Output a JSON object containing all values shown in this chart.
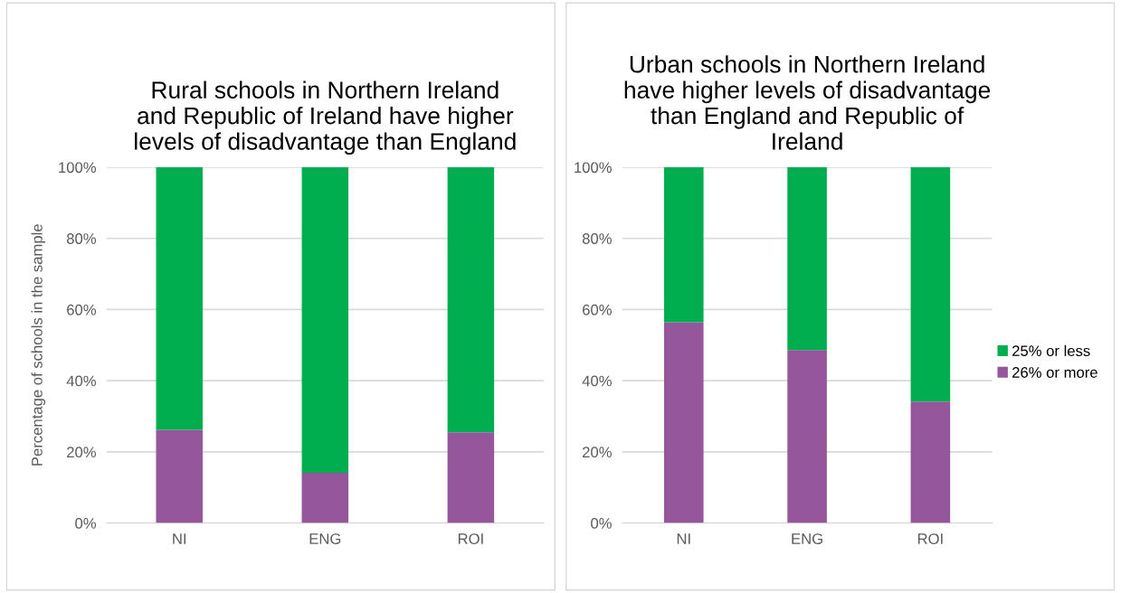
{
  "chart_data": [
    {
      "type": "bar",
      "title": "Rural schools in Northern Ireland\nand Republic of Ireland have higher\nlevels of disadvantage than England",
      "ylabel": "Percentage of schools in the sample",
      "categories": [
        "NI",
        "ENG",
        "ROI"
      ],
      "stacked": true,
      "series": [
        {
          "color": "#95569b",
          "values": [
            26.2,
            14.1,
            25.5
          ]
        },
        {
          "color": "#00ae4f",
          "values": [
            73.8,
            85.9,
            74.5
          ]
        }
      ],
      "ylim": [
        0,
        100
      ],
      "yticks": [
        {
          "value": 0,
          "label": "0%"
        },
        {
          "value": 20,
          "label": "20%"
        },
        {
          "value": 40,
          "label": "40%"
        },
        {
          "value": 60,
          "label": "60%"
        },
        {
          "value": 80,
          "label": "80%"
        },
        {
          "value": 100,
          "label": "100%"
        }
      ],
      "grid": "y",
      "legend": false
    },
    {
      "type": "bar",
      "title": "Urban schools in Northern Ireland\nhave higher levels of disadvantage\nthan England and Republic of\nIreland",
      "categories": [
        "NI",
        "ENG",
        "ROI"
      ],
      "stacked": true,
      "series": [
        {
          "name": "26% or more",
          "color": "#95569b",
          "values": [
            56.4,
            48.6,
            34.1
          ]
        },
        {
          "name": "25% or less",
          "color": "#00ae4f",
          "values": [
            43.6,
            51.4,
            65.9
          ]
        }
      ],
      "ylim": [
        0,
        100
      ],
      "yticks": [
        {
          "value": 0,
          "label": "0%"
        },
        {
          "value": 20,
          "label": "20%"
        },
        {
          "value": 40,
          "label": "40%"
        },
        {
          "value": 60,
          "label": "60%"
        },
        {
          "value": 80,
          "label": "80%"
        },
        {
          "value": 100,
          "label": "100%"
        }
      ],
      "grid": "y",
      "legend": "right"
    }
  ]
}
